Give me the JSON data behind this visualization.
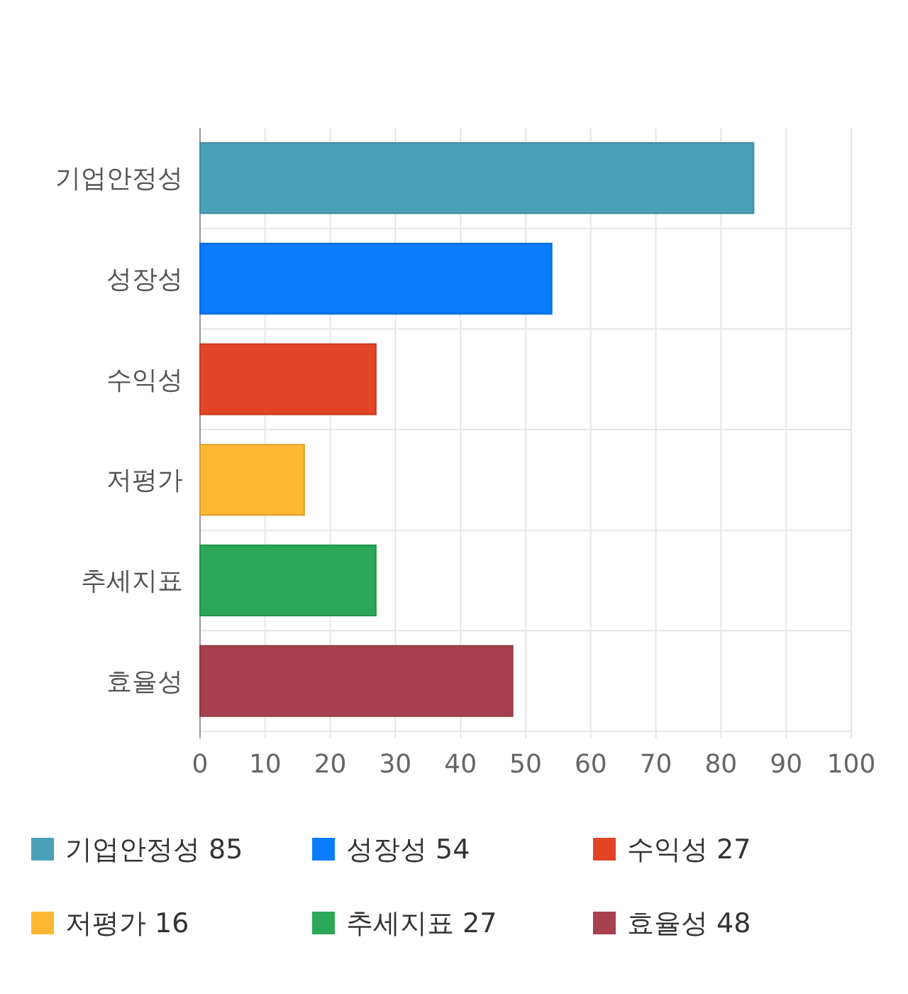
{
  "chart_data": {
    "type": "bar",
    "orientation": "horizontal",
    "stacked": true,
    "categories": [
      "기업안정성",
      "성장성",
      "수익성",
      "저평가",
      "추세지표",
      "효율성"
    ],
    "series": [
      {
        "name": "기업안정성 85",
        "color": "#4aa0b8",
        "values": [
          85,
          null,
          null,
          null,
          null,
          null
        ]
      },
      {
        "name": "성장성 54",
        "color": "#0a7cff",
        "values": [
          null,
          54,
          null,
          null,
          null,
          null
        ]
      },
      {
        "name": "수익성 27",
        "color": "#e24426",
        "values": [
          null,
          null,
          27,
          null,
          null,
          null
        ]
      },
      {
        "name": "저평가 16",
        "color": "#ffb733",
        "values": [
          null,
          null,
          null,
          16,
          null,
          null
        ]
      },
      {
        "name": "추세지표 27",
        "color": "#2aa857",
        "values": [
          null,
          null,
          null,
          null,
          27,
          null
        ]
      },
      {
        "name": "효율성 48",
        "color": "#a8414f",
        "values": [
          null,
          null,
          null,
          null,
          null,
          48
        ]
      }
    ],
    "xlim": [
      0,
      100
    ],
    "xticks": [
      0,
      10,
      20,
      30,
      40,
      50,
      60,
      70,
      80,
      90,
      100
    ],
    "grid": true,
    "legend": "bottom"
  }
}
